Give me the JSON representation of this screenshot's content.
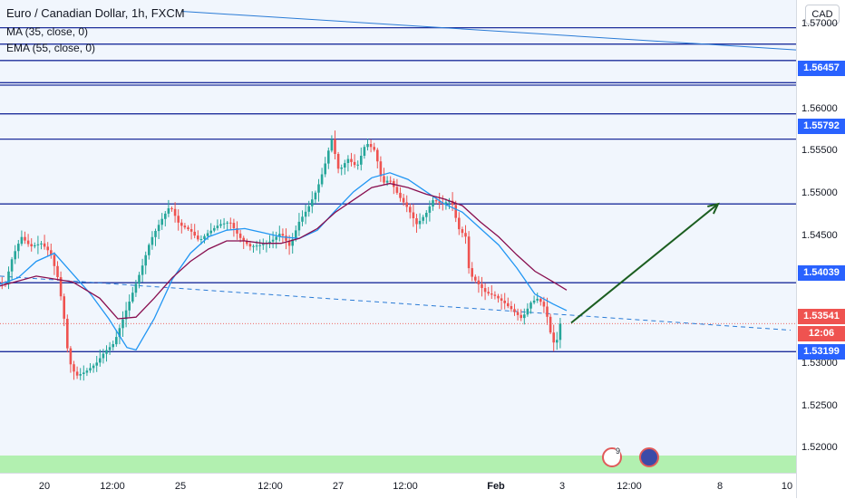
{
  "legend": {
    "title": "Euro / Canadian Dollar, 1h, FXCM",
    "ma": "MA (35, close, 0)",
    "ema": "EMA (55, close, 0)"
  },
  "currency": "CAD",
  "colors": {
    "level_line": "#1e2f9c",
    "level_label": "#2962ff",
    "candle_up": "#26a69a",
    "candle_down": "#ef5350",
    "ma_line": "#2196f3",
    "ema_line": "#880e4f",
    "arrow": "#1b5e20",
    "green_band": "#b2f0b0",
    "countdown": "#ef5350"
  },
  "price_labels": {
    "l1": "1.56457",
    "l2": "1.55792",
    "l3": "1.54039",
    "l4": "1.53541",
    "l5": "12:06",
    "l6": "1.53199"
  },
  "event_badge": "9",
  "chart_data": {
    "type": "candlestick",
    "title": "Euro / Canadian Dollar, 1h, FXCM",
    "y_ticks": [
      "1.57000",
      "1.56000",
      "1.55500",
      "1.55000",
      "1.54500",
      "1.53000",
      "1.52500",
      "1.52000"
    ],
    "x_ticks": [
      "20",
      "12:00",
      "25",
      "12:00",
      "27",
      "12:00",
      "Feb",
      "3",
      "12:00",
      "8",
      "10",
      "12:00"
    ],
    "bold_x_ticks": [
      "Feb"
    ],
    "ylim": [
      1.5175,
      1.5725
    ],
    "horizontal_levels": [
      1.5715,
      1.5695,
      1.5675,
      1.5648,
      1.5645,
      1.561,
      1.55792,
      1.55,
      1.54039,
      1.53199
    ],
    "last_price": 1.53541,
    "countdown": "12:06",
    "price_path": [
      [
        0,
        1.5405
      ],
      [
        8,
        1.5402
      ],
      [
        16,
        1.5435
      ],
      [
        26,
        1.546
      ],
      [
        36,
        1.5448
      ],
      [
        48,
        1.5452
      ],
      [
        58,
        1.544
      ],
      [
        66,
        1.541
      ],
      [
        72,
        1.537
      ],
      [
        78,
        1.531
      ],
      [
        86,
        1.529
      ],
      [
        96,
        1.5295
      ],
      [
        108,
        1.5305
      ],
      [
        118,
        1.532
      ],
      [
        128,
        1.533
      ],
      [
        138,
        1.536
      ],
      [
        148,
        1.539
      ],
      [
        158,
        1.542
      ],
      [
        168,
        1.5455
      ],
      [
        180,
        1.548
      ],
      [
        190,
        1.5498
      ],
      [
        200,
        1.5475
      ],
      [
        212,
        1.5468
      ],
      [
        222,
        1.5455
      ],
      [
        232,
        1.5465
      ],
      [
        244,
        1.5475
      ],
      [
        256,
        1.5478
      ],
      [
        266,
        1.546
      ],
      [
        278,
        1.5448
      ],
      [
        290,
        1.545
      ],
      [
        302,
        1.5455
      ],
      [
        312,
        1.5465
      ],
      [
        322,
        1.5448
      ],
      [
        332,
        1.5478
      ],
      [
        342,
        1.5495
      ],
      [
        352,
        1.5518
      ],
      [
        360,
        1.5545
      ],
      [
        368,
        1.558
      ],
      [
        376,
        1.554
      ],
      [
        386,
        1.5555
      ],
      [
        396,
        1.5545
      ],
      [
        406,
        1.5575
      ],
      [
        416,
        1.5565
      ],
      [
        424,
        1.5525
      ],
      [
        432,
        1.553
      ],
      [
        442,
        1.551
      ],
      [
        452,
        1.5495
      ],
      [
        462,
        1.5475
      ],
      [
        472,
        1.5488
      ],
      [
        480,
        1.5505
      ],
      [
        490,
        1.55
      ],
      [
        500,
        1.5505
      ],
      [
        508,
        1.547
      ],
      [
        516,
        1.546
      ],
      [
        520,
        1.5415
      ],
      [
        528,
        1.5405
      ],
      [
        538,
        1.5392
      ],
      [
        548,
        1.5388
      ],
      [
        558,
        1.538
      ],
      [
        568,
        1.537
      ],
      [
        578,
        1.536
      ],
      [
        588,
        1.538
      ],
      [
        596,
        1.5385
      ],
      [
        604,
        1.5372
      ],
      [
        610,
        1.534
      ],
      [
        615,
        1.5325
      ],
      [
        620,
        1.5354
      ]
    ],
    "series": [
      {
        "name": "MA (35, close, 0)",
        "points": [
          [
            0,
            1.5402
          ],
          [
            20,
            1.541
          ],
          [
            40,
            1.543
          ],
          [
            60,
            1.544
          ],
          [
            80,
            1.5415
          ],
          [
            100,
            1.539
          ],
          [
            120,
            1.536
          ],
          [
            140,
            1.5325
          ],
          [
            150,
            1.5322
          ],
          [
            170,
            1.536
          ],
          [
            190,
            1.5408
          ],
          [
            210,
            1.544
          ],
          [
            230,
            1.546
          ],
          [
            250,
            1.5468
          ],
          [
            270,
            1.547
          ],
          [
            290,
            1.5465
          ],
          [
            310,
            1.546
          ],
          [
            330,
            1.5458
          ],
          [
            350,
            1.5468
          ],
          [
            370,
            1.5492
          ],
          [
            390,
            1.5515
          ],
          [
            410,
            1.5532
          ],
          [
            430,
            1.5538
          ],
          [
            450,
            1.553
          ],
          [
            470,
            1.5515
          ],
          [
            490,
            1.55
          ],
          [
            510,
            1.549
          ],
          [
            530,
            1.547
          ],
          [
            550,
            1.545
          ],
          [
            570,
            1.5422
          ],
          [
            590,
            1.539
          ],
          [
            610,
            1.5378
          ],
          [
            625,
            1.537
          ]
        ]
      },
      {
        "name": "EMA (55, close, 0)",
        "points": [
          [
            0,
            1.54
          ],
          [
            40,
            1.5412
          ],
          [
            80,
            1.5405
          ],
          [
            110,
            1.5385
          ],
          [
            130,
            1.536
          ],
          [
            150,
            1.5362
          ],
          [
            170,
            1.5385
          ],
          [
            190,
            1.541
          ],
          [
            210,
            1.543
          ],
          [
            230,
            1.5445
          ],
          [
            250,
            1.5455
          ],
          [
            270,
            1.5455
          ],
          [
            290,
            1.5452
          ],
          [
            310,
            1.5452
          ],
          [
            330,
            1.5458
          ],
          [
            350,
            1.547
          ],
          [
            370,
            1.549
          ],
          [
            390,
            1.5505
          ],
          [
            410,
            1.552
          ],
          [
            430,
            1.5525
          ],
          [
            450,
            1.552
          ],
          [
            470,
            1.5512
          ],
          [
            490,
            1.5506
          ],
          [
            510,
            1.5498
          ],
          [
            530,
            1.5478
          ],
          [
            550,
            1.546
          ],
          [
            570,
            1.5438
          ],
          [
            590,
            1.5418
          ],
          [
            610,
            1.5405
          ],
          [
            625,
            1.5395
          ]
        ]
      }
    ],
    "trendlines": [
      {
        "from": [
          0,
          1.5412
        ],
        "to": [
          872,
          1.5346
        ],
        "style": "dashed"
      },
      {
        "from": [
          200,
          1.5735
        ],
        "to": [
          878,
          1.5688
        ],
        "style": "solid"
      }
    ],
    "projection_arrow": {
      "from": [
        630,
        1.5355
      ],
      "to": [
        792,
        1.55
      ]
    },
    "annotations": [
      "9"
    ]
  }
}
